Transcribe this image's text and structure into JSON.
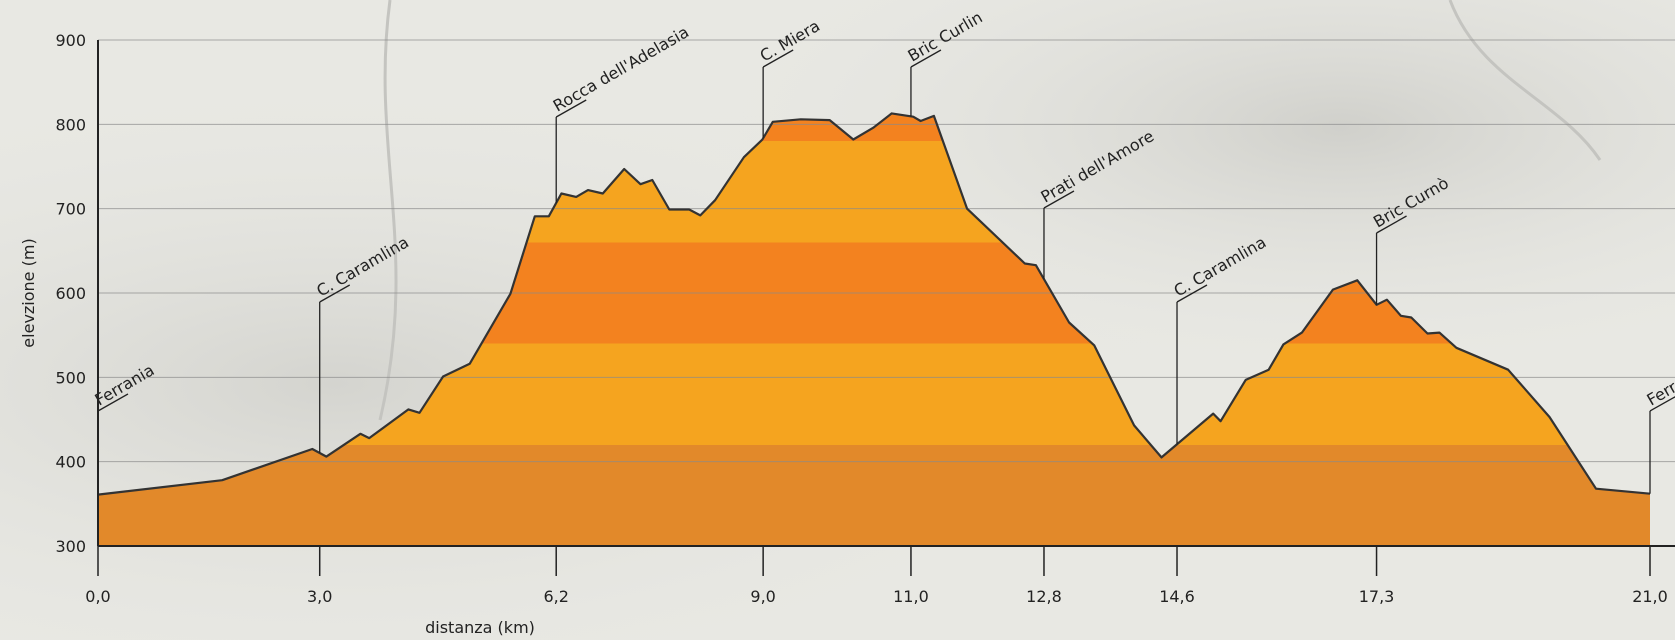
{
  "chart_data": {
    "type": "area",
    "x_label": "distanza (km)",
    "y_label": "elevzione (m)",
    "x": [
      0,
      1.68,
      2.9,
      3.09,
      3.55,
      3.67,
      4.2,
      4.35,
      4.67,
      5.03,
      5.58,
      5.91,
      6.1,
      6.27,
      6.47,
      6.63,
      6.83,
      7.12,
      7.34,
      7.5,
      7.73,
      8.0,
      8.15,
      8.35,
      8.74,
      8.99,
      9.13,
      9.51,
      9.9,
      10.22,
      10.49,
      10.74,
      11.03,
      11.13,
      11.31,
      11.76,
      12.54,
      12.69,
      13.14,
      13.48,
      14.02,
      14.39,
      15.09,
      15.19,
      15.53,
      15.84,
      16.04,
      16.29,
      16.71,
      17.04,
      17.3,
      17.44,
      17.63,
      17.77,
      17.99,
      18.15,
      18.38,
      19.08,
      19.64,
      20.27,
      21.0
    ],
    "values": [
      361,
      378,
      415,
      406,
      433,
      428,
      462,
      458,
      501,
      516,
      599,
      691,
      691,
      718,
      714,
      722,
      718,
      747,
      729,
      734,
      699,
      699,
      692,
      710,
      761,
      782,
      803,
      806,
      805,
      782,
      796,
      813,
      809,
      804,
      810,
      700,
      635,
      633,
      565,
      538,
      443,
      405,
      457,
      448,
      497,
      509,
      539,
      553,
      604,
      615,
      586,
      592,
      573,
      571,
      552,
      553,
      535,
      509,
      453,
      368,
      362
    ],
    "xlim": [
      0,
      21
    ],
    "ylim": [
      300,
      900
    ],
    "xticks": [
      {
        "value": 0,
        "label": "0,0"
      },
      {
        "value": 3,
        "label": "3,0"
      },
      {
        "value": 6.2,
        "label": "6,2"
      },
      {
        "value": 9,
        "label": "9,0"
      },
      {
        "value": 11,
        "label": "11,0"
      },
      {
        "value": 12.8,
        "label": "12,8"
      },
      {
        "value": 14.6,
        "label": "14,6"
      },
      {
        "value": 17.3,
        "label": "17,3"
      },
      {
        "value": 21,
        "label": "21,0"
      }
    ],
    "yticks": [
      300,
      400,
      500,
      600,
      700,
      800,
      900
    ],
    "grid": true,
    "colors": [
      "#e2892a",
      "#f5a41f",
      "#f3821f",
      "#f5a41f",
      "#f3821f"
    ],
    "line_color": "#333333",
    "annotations": [
      {
        "label": "Ferrania",
        "x": 0
      },
      {
        "label": "C. Caramlina",
        "x": 3
      },
      {
        "label": "Rocca dell'Adelasia",
        "x": 6.2
      },
      {
        "label": "C. Miera",
        "x": 9
      },
      {
        "label": "Bric Curlin",
        "x": 11
      },
      {
        "label": "Prati dell'Amore",
        "x": 12.8
      },
      {
        "label": "C. Caramlina",
        "x": 14.6
      },
      {
        "label": "Bric Curnò",
        "x": 17.3
      },
      {
        "label": "Ferrania",
        "x": 21
      }
    ]
  }
}
